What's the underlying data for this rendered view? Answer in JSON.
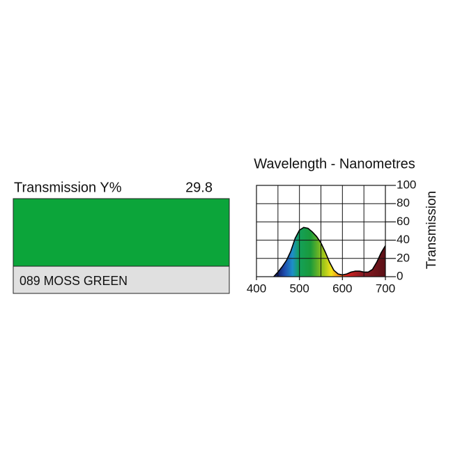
{
  "swatch": {
    "transmission_label": "Transmission Y%",
    "transmission_value": "29.8",
    "name": "089 MOSS GREEN",
    "color": "#0ca53a"
  },
  "chart_data": {
    "type": "area",
    "title": "Wavelength - Nanometres",
    "y_label": "Transmission",
    "x": [
      440,
      450,
      460,
      470,
      480,
      490,
      500,
      510,
      520,
      530,
      540,
      550,
      560,
      570,
      580,
      590,
      600,
      610,
      620,
      630,
      640,
      650,
      660,
      670,
      680,
      690,
      700
    ],
    "values": [
      0,
      5,
      11,
      18,
      28,
      42,
      51,
      54,
      53,
      49,
      44,
      37,
      27,
      16,
      7,
      3,
      2,
      3,
      5,
      6,
      6,
      5,
      5,
      8,
      16,
      26,
      34
    ],
    "xlim": [
      400,
      700
    ],
    "ylim": [
      0,
      100
    ],
    "xticks": [
      400,
      500,
      600,
      700
    ],
    "x_grid": [
      400,
      450,
      500,
      550,
      600,
      650,
      700
    ],
    "yticks": [
      0,
      20,
      40,
      60,
      80,
      100
    ],
    "grid": true
  }
}
